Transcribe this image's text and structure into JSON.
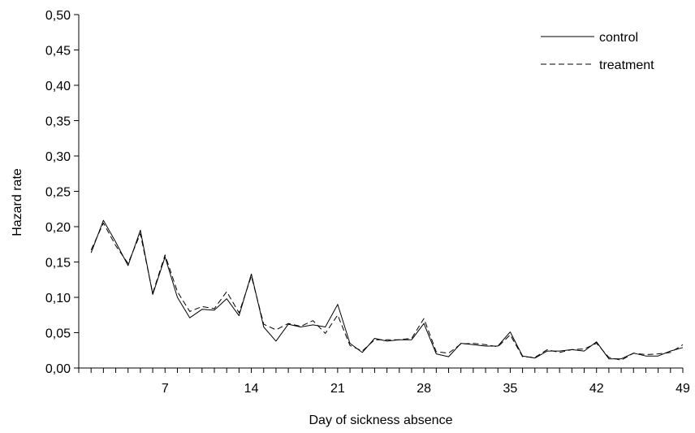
{
  "chart_data": {
    "type": "line",
    "xlabel": "Day of sickness absence",
    "ylabel": "Hazard rate",
    "xlim": [
      0,
      49
    ],
    "ylim": [
      0,
      0.5
    ],
    "x_ticks": [
      7,
      14,
      21,
      28,
      35,
      42,
      49
    ],
    "x_tick_labels": [
      "7",
      "14",
      "21",
      "28",
      "35",
      "42",
      "49"
    ],
    "y_ticks": [
      0,
      0.05,
      0.1,
      0.15,
      0.2,
      0.25,
      0.3,
      0.35,
      0.4,
      0.45,
      0.5
    ],
    "y_tick_labels": [
      "0,00",
      "0,05",
      "0,10",
      "0,15",
      "0,20",
      "0,25",
      "0,30",
      "0,35",
      "0,40",
      "0,45",
      "0,50"
    ],
    "grid": false,
    "legend_position": "top-right",
    "x": [
      1,
      2,
      3,
      4,
      5,
      6,
      7,
      8,
      9,
      10,
      11,
      12,
      13,
      14,
      15,
      16,
      17,
      18,
      19,
      20,
      21,
      22,
      23,
      24,
      25,
      26,
      27,
      28,
      29,
      30,
      31,
      32,
      33,
      34,
      35,
      36,
      37,
      38,
      39,
      40,
      41,
      42,
      43,
      44,
      45,
      46,
      47,
      48,
      49
    ],
    "series": [
      {
        "name": "control",
        "style": "solid",
        "values": [
          0.163,
          0.209,
          0.178,
          0.145,
          0.195,
          0.104,
          0.157,
          0.1,
          0.071,
          0.083,
          0.082,
          0.098,
          0.074,
          0.133,
          0.058,
          0.038,
          0.062,
          0.058,
          0.061,
          0.058,
          0.09,
          0.035,
          0.022,
          0.042,
          0.038,
          0.04,
          0.04,
          0.063,
          0.02,
          0.016,
          0.035,
          0.033,
          0.031,
          0.031,
          0.051,
          0.017,
          0.014,
          0.024,
          0.024,
          0.026,
          0.024,
          0.037,
          0.013,
          0.013,
          0.021,
          0.017,
          0.017,
          0.024,
          0.029
        ]
      },
      {
        "name": "treatment",
        "style": "dashed",
        "values": [
          0.167,
          0.205,
          0.173,
          0.148,
          0.19,
          0.106,
          0.16,
          0.108,
          0.08,
          0.087,
          0.084,
          0.108,
          0.078,
          0.13,
          0.062,
          0.054,
          0.063,
          0.059,
          0.067,
          0.049,
          0.075,
          0.032,
          0.024,
          0.04,
          0.04,
          0.04,
          0.042,
          0.07,
          0.023,
          0.021,
          0.034,
          0.035,
          0.033,
          0.03,
          0.047,
          0.016,
          0.015,
          0.026,
          0.022,
          0.026,
          0.027,
          0.035,
          0.015,
          0.011,
          0.021,
          0.019,
          0.02,
          0.022,
          0.033
        ]
      }
    ]
  }
}
